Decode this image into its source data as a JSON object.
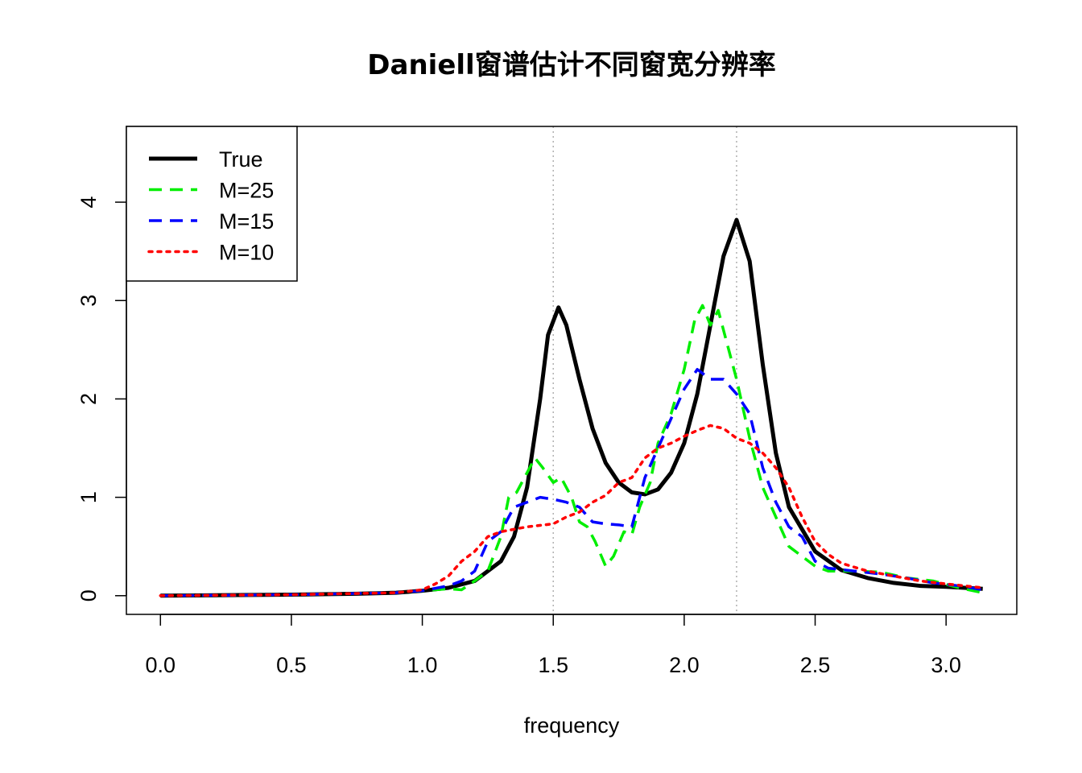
{
  "chart_data": {
    "type": "line",
    "title": "Daniell窗谱估计不同窗宽分辨率",
    "xlabel": "frequency",
    "ylabel": "",
    "xlim": [
      -0.13,
      3.27
    ],
    "ylim": [
      -0.19,
      4.77
    ],
    "xticks": [
      "0.0",
      "0.5",
      "1.0",
      "1.5",
      "2.0",
      "2.5",
      "3.0"
    ],
    "yticks": [
      "0",
      "1",
      "2",
      "3",
      "4"
    ],
    "reference_lines_x": [
      1.5,
      2.2
    ],
    "legend_position": "top-left",
    "series": [
      {
        "name": "True",
        "color": "#000000",
        "style": "solid",
        "x": [
          0.0,
          0.25,
          0.5,
          0.75,
          0.9,
          1.0,
          1.1,
          1.2,
          1.3,
          1.35,
          1.4,
          1.45,
          1.48,
          1.52,
          1.55,
          1.6,
          1.65,
          1.7,
          1.75,
          1.8,
          1.85,
          1.9,
          1.95,
          2.0,
          2.05,
          2.1,
          2.15,
          2.2,
          2.25,
          2.3,
          2.35,
          2.4,
          2.5,
          2.6,
          2.7,
          2.8,
          2.9,
          3.0,
          3.14
        ],
        "y": [
          0.0,
          0.005,
          0.01,
          0.02,
          0.03,
          0.05,
          0.08,
          0.15,
          0.35,
          0.6,
          1.1,
          2.0,
          2.65,
          2.93,
          2.75,
          2.2,
          1.7,
          1.35,
          1.15,
          1.05,
          1.03,
          1.08,
          1.25,
          1.55,
          2.05,
          2.75,
          3.45,
          3.82,
          3.4,
          2.35,
          1.45,
          0.9,
          0.45,
          0.26,
          0.18,
          0.13,
          0.1,
          0.09,
          0.07
        ]
      },
      {
        "name": "M=25",
        "color": "#00ee00",
        "style": "dashed",
        "x": [
          0.0,
          0.5,
          0.9,
          1.0,
          1.1,
          1.15,
          1.2,
          1.25,
          1.3,
          1.33,
          1.36,
          1.4,
          1.43,
          1.46,
          1.5,
          1.53,
          1.57,
          1.6,
          1.63,
          1.66,
          1.7,
          1.73,
          1.77,
          1.8,
          1.83,
          1.87,
          1.9,
          1.95,
          2.0,
          2.04,
          2.07,
          2.1,
          2.13,
          2.16,
          2.2,
          2.25,
          2.3,
          2.35,
          2.4,
          2.45,
          2.5,
          2.55,
          2.65,
          2.75,
          2.85,
          2.95,
          3.05,
          3.14
        ],
        "y": [
          0.0,
          0.01,
          0.03,
          0.05,
          0.07,
          0.06,
          0.15,
          0.25,
          0.6,
          1.0,
          1.05,
          1.25,
          1.4,
          1.3,
          1.15,
          1.2,
          1.0,
          0.75,
          0.7,
          0.55,
          0.3,
          0.4,
          0.65,
          0.62,
          0.9,
          1.15,
          1.55,
          1.85,
          2.3,
          2.8,
          2.95,
          2.75,
          2.9,
          2.6,
          2.2,
          1.6,
          1.1,
          0.8,
          0.5,
          0.4,
          0.3,
          0.25,
          0.25,
          0.24,
          0.18,
          0.15,
          0.08,
          0.03
        ]
      },
      {
        "name": "M=15",
        "color": "#0000ff",
        "style": "dashed",
        "x": [
          0.0,
          0.5,
          0.9,
          1.0,
          1.1,
          1.15,
          1.2,
          1.25,
          1.3,
          1.35,
          1.4,
          1.45,
          1.5,
          1.55,
          1.6,
          1.65,
          1.7,
          1.75,
          1.8,
          1.85,
          1.9,
          1.95,
          2.0,
          2.05,
          2.1,
          2.15,
          2.2,
          2.25,
          2.3,
          2.35,
          2.4,
          2.45,
          2.5,
          2.55,
          2.65,
          2.75,
          2.85,
          2.95,
          3.05,
          3.14
        ],
        "y": [
          0.0,
          0.01,
          0.03,
          0.05,
          0.1,
          0.15,
          0.25,
          0.55,
          0.65,
          0.9,
          0.95,
          1.0,
          0.98,
          0.95,
          0.9,
          0.75,
          0.73,
          0.72,
          0.7,
          1.2,
          1.5,
          1.8,
          2.1,
          2.3,
          2.2,
          2.2,
          2.05,
          1.85,
          1.3,
          0.95,
          0.7,
          0.6,
          0.35,
          0.28,
          0.25,
          0.22,
          0.18,
          0.13,
          0.1,
          0.06
        ]
      },
      {
        "name": "M=10",
        "color": "#ff0000",
        "style": "dotted",
        "x": [
          0.0,
          0.5,
          0.9,
          1.0,
          1.05,
          1.1,
          1.15,
          1.2,
          1.25,
          1.3,
          1.4,
          1.5,
          1.55,
          1.6,
          1.65,
          1.7,
          1.75,
          1.8,
          1.85,
          1.9,
          1.95,
          2.0,
          2.05,
          2.1,
          2.15,
          2.2,
          2.25,
          2.3,
          2.35,
          2.4,
          2.45,
          2.5,
          2.55,
          2.6,
          2.7,
          2.8,
          2.9,
          3.0,
          3.14
        ],
        "y": [
          0.0,
          0.01,
          0.03,
          0.06,
          0.12,
          0.2,
          0.35,
          0.45,
          0.6,
          0.65,
          0.7,
          0.73,
          0.8,
          0.85,
          0.95,
          1.02,
          1.15,
          1.2,
          1.4,
          1.5,
          1.55,
          1.62,
          1.68,
          1.73,
          1.7,
          1.6,
          1.55,
          1.45,
          1.3,
          1.1,
          0.8,
          0.55,
          0.42,
          0.33,
          0.25,
          0.2,
          0.15,
          0.12,
          0.08
        ]
      }
    ]
  }
}
